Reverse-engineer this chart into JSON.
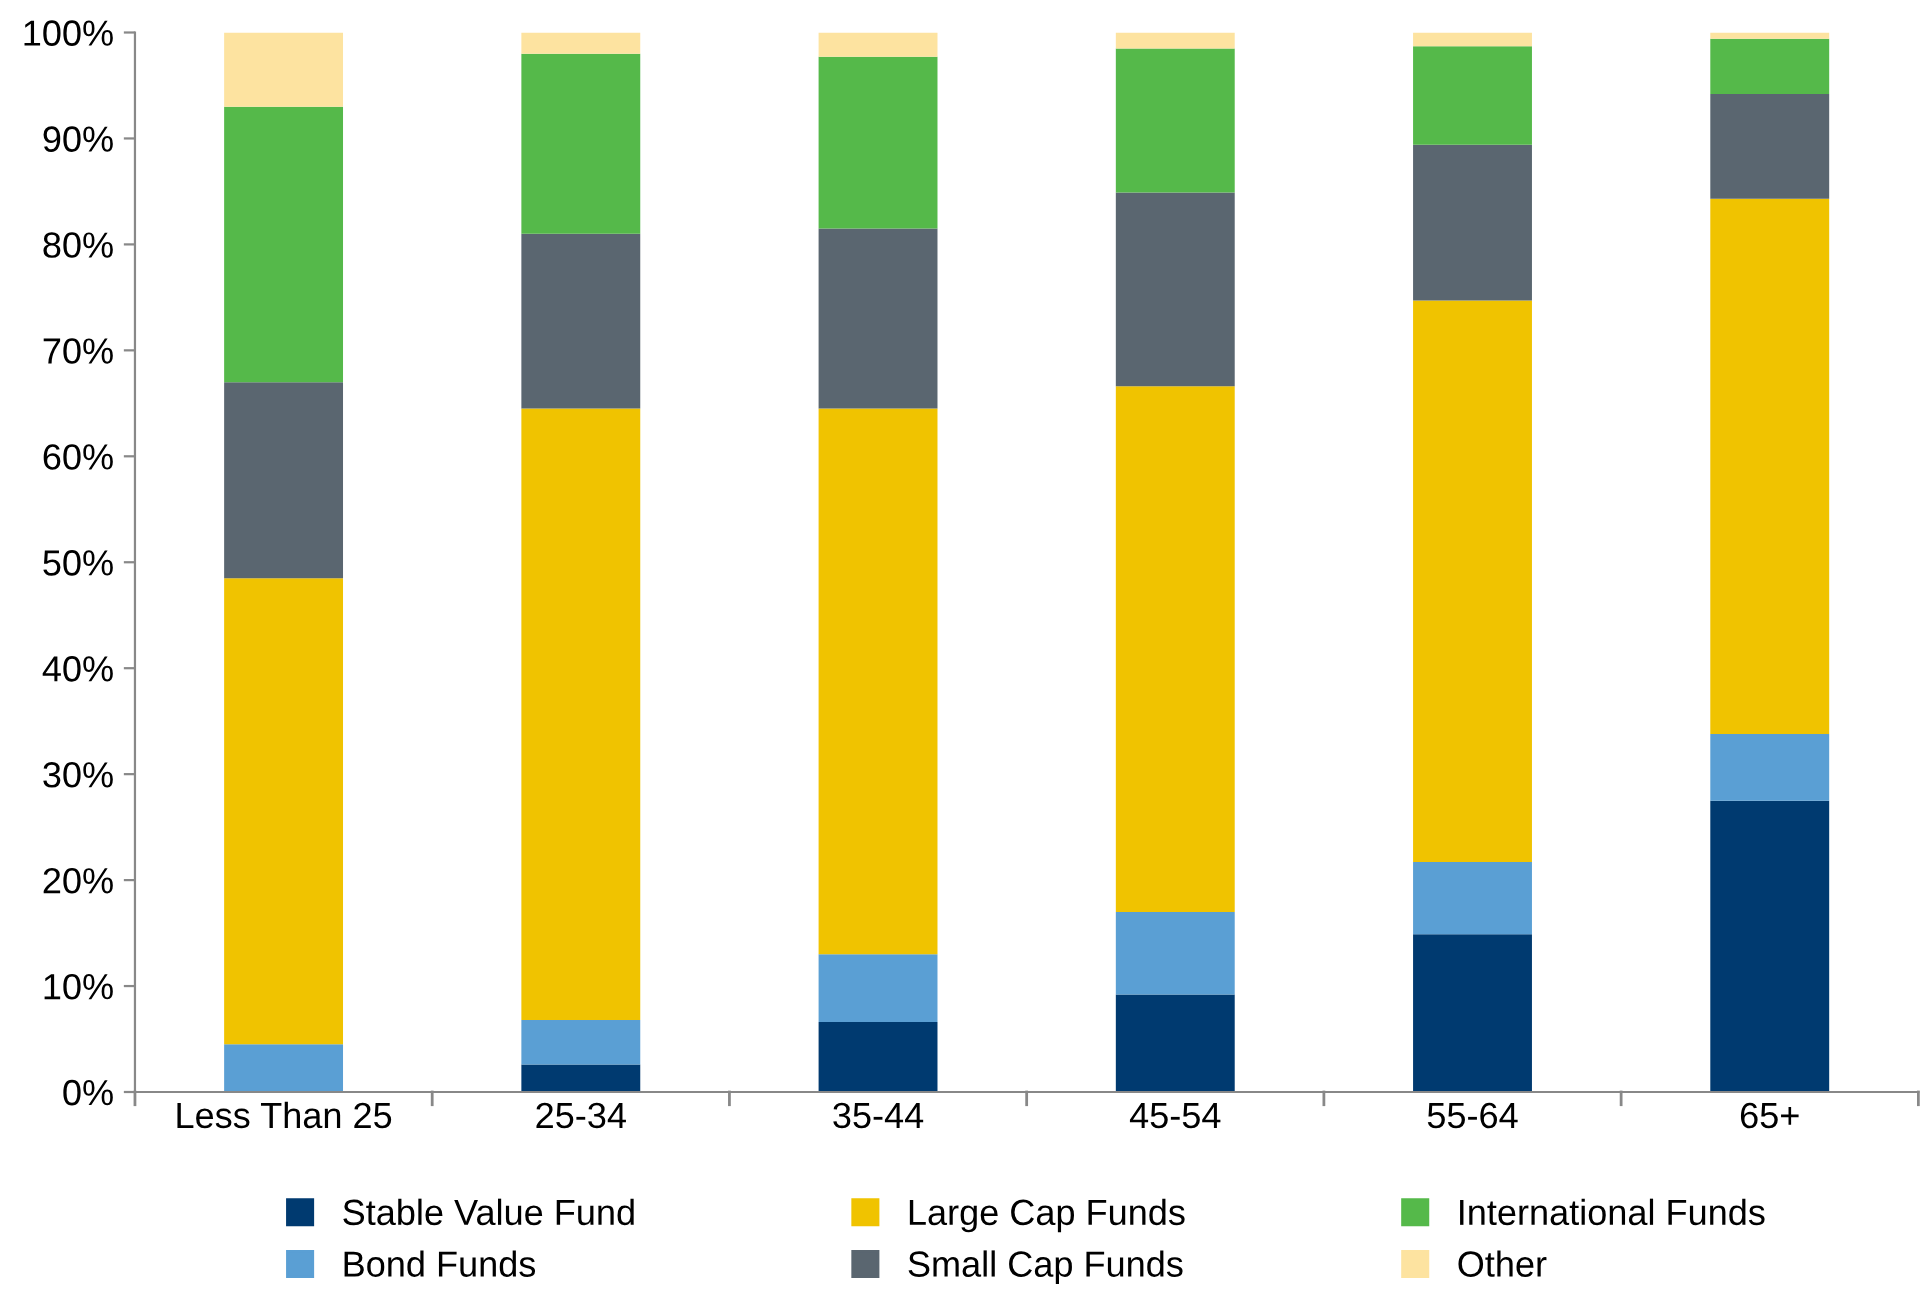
{
  "chart_data": {
    "type": "bar",
    "stacked": true,
    "categories": [
      "Less Than 25",
      "25-34",
      "35-44",
      "45-54",
      "55-64",
      "65+"
    ],
    "series": [
      {
        "name": "Stable Value Fund",
        "color": "#003a70",
        "values": [
          0,
          2.6,
          6.6,
          9.2,
          14.9,
          27.5
        ]
      },
      {
        "name": "Bond Funds",
        "color": "#5a9fd4",
        "values": [
          4.5,
          4.2,
          6.4,
          7.8,
          6.8,
          6.3
        ]
      },
      {
        "name": "Large Cap Funds",
        "color": "#f0c300",
        "values": [
          44,
          57.7,
          51.5,
          49.6,
          53,
          50.5
        ]
      },
      {
        "name": "Small Cap Funds",
        "color": "#5a6670",
        "values": [
          18.5,
          16.5,
          17,
          18.3,
          14.7,
          9.9
        ]
      },
      {
        "name": "International Funds",
        "color": "#55b94a",
        "values": [
          26,
          17,
          16.2,
          13.6,
          9.3,
          5.2
        ]
      },
      {
        "name": "Other",
        "color": "#fde3a0",
        "values": [
          7,
          2,
          2.3,
          1.5,
          1.3,
          0.6
        ]
      }
    ],
    "ylim": [
      0,
      100
    ],
    "yticks": [
      {
        "value": 0,
        "label": "0%"
      },
      {
        "value": 10,
        "label": "10%"
      },
      {
        "value": 20,
        "label": "20%"
      },
      {
        "value": 30,
        "label": "30%"
      },
      {
        "value": 40,
        "label": "40%"
      },
      {
        "value": 50,
        "label": "50%"
      },
      {
        "value": 60,
        "label": "60%"
      },
      {
        "value": 70,
        "label": "70%"
      },
      {
        "value": 80,
        "label": "80%"
      },
      {
        "value": 90,
        "label": "90%"
      },
      {
        "value": 100,
        "label": "100%"
      }
    ],
    "grid": false,
    "legend": "bottom"
  }
}
